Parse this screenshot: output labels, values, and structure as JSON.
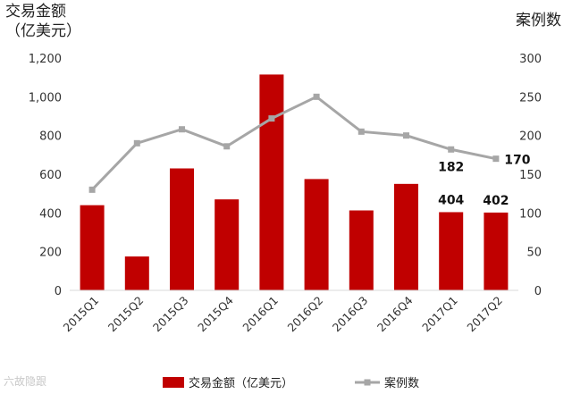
{
  "chart_data": {
    "type": "bar+line",
    "categories": [
      "2015Q1",
      "2015Q2",
      "2015Q3",
      "2015Q4",
      "2016Q1",
      "2016Q2",
      "2016Q3",
      "2016Q4",
      "2017Q1",
      "2017Q2"
    ],
    "series": [
      {
        "name": "交易金额（亿美元）",
        "type": "bar",
        "axis": "left",
        "values": [
          440,
          175,
          630,
          470,
          1115,
          575,
          413,
          550,
          404,
          402
        ]
      },
      {
        "name": "案例数",
        "type": "line",
        "axis": "right",
        "values": [
          130,
          190,
          208,
          186,
          222,
          250,
          205,
          200,
          182,
          170
        ]
      }
    ],
    "data_labels": [
      {
        "series": 0,
        "index": 8,
        "text": "404"
      },
      {
        "series": 0,
        "index": 9,
        "text": "402"
      },
      {
        "series": 1,
        "index": 8,
        "text": "182"
      },
      {
        "series": 1,
        "index": 9,
        "text": "170"
      }
    ],
    "ylabel_left": "交易金额\n（亿美元）",
    "ylabel_right": "案例数",
    "ylim_left": [
      0,
      1200
    ],
    "ylim_right": [
      0,
      300
    ],
    "yticks_left": [
      "0",
      "200",
      "400",
      "600",
      "800",
      "1,000",
      "1,200"
    ],
    "yticks_right": [
      "0",
      "50",
      "100",
      "150",
      "200",
      "250",
      "300"
    ],
    "grid": false,
    "legend_position": "bottom",
    "colors": {
      "bar": "#c00000",
      "line": "#a6a6a6"
    }
  },
  "watermark": "六故隐跟"
}
